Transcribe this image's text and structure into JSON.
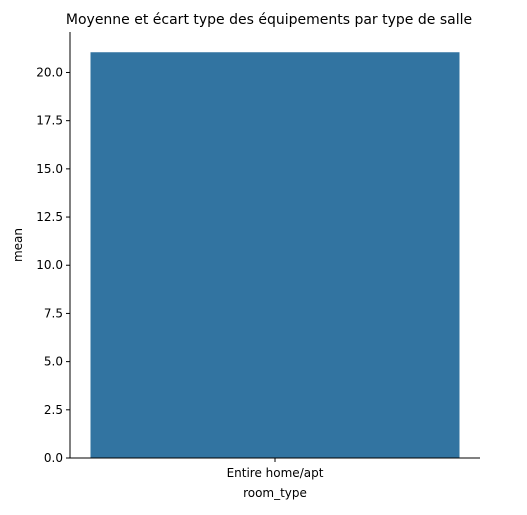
{
  "chart_data": {
    "type": "bar",
    "title": "Moyenne et écart type des équipements par type de salle",
    "xlabel": "room_type",
    "ylabel": "mean",
    "categories": [
      "Entire home/apt"
    ],
    "values": [
      21.05
    ],
    "ylim": [
      0,
      22.1
    ],
    "yticks": [
      0.0,
      2.5,
      5.0,
      7.5,
      10.0,
      12.5,
      15.0,
      17.5,
      20.0
    ],
    "ytick_labels": [
      "0.0",
      "2.5",
      "5.0",
      "7.5",
      "10.0",
      "12.5",
      "15.0",
      "17.5",
      "20.0"
    ],
    "grid": false,
    "bar_color": "#3274a1"
  }
}
